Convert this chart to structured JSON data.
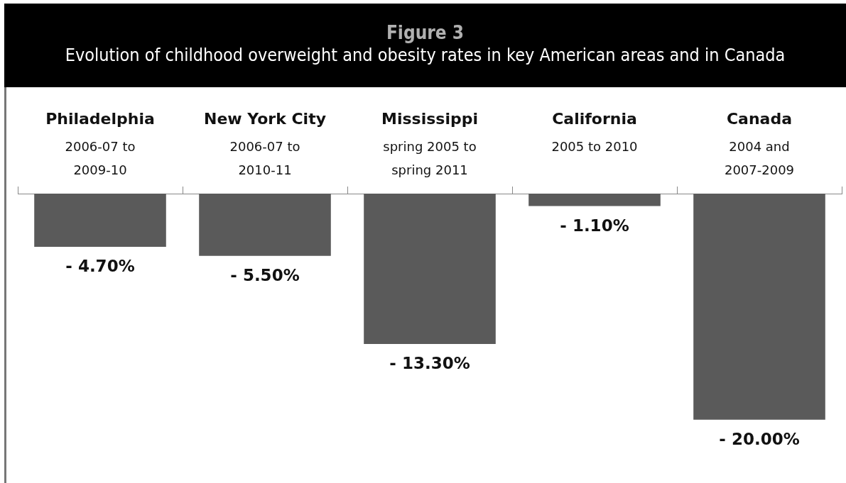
{
  "chart_data": {
    "type": "bar",
    "title": "Figure 3",
    "subtitle": "Evolution of childhood overweight and obesity rates in key American areas and in Canada",
    "categories": [
      "Philadelphia\n2006-07 to\n2009-10",
      "New York City\n2006-07 to\n2010-11",
      "Mississippi\nspring 2005 to\nspring 2011",
      "California\n2005 to 2010",
      "Canada\n2004 and\n2007-2009"
    ],
    "values": [
      -4.7,
      -5.5,
      -13.3,
      -1.1,
      -20.0
    ],
    "value_labels": [
      "- 4.70%",
      "- 5.50%",
      "- 13.30%",
      "- 1.10%",
      "- 20.00%"
    ],
    "color": "#5a5a5a"
  }
}
